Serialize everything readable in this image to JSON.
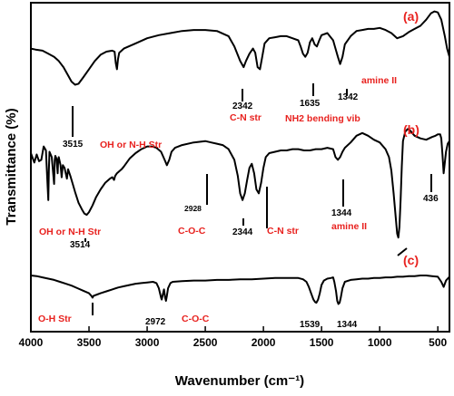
{
  "chart_data": {
    "type": "line",
    "xlabel": "Wavenumber (cm⁻¹)",
    "ylabel": "Transmittance (%)",
    "xlim": [
      4000,
      400
    ],
    "x_reversed": true,
    "y_ticks_shown": false,
    "x_ticks": [
      4000,
      3500,
      3000,
      2500,
      2000,
      1500,
      1000,
      500
    ],
    "panels": [
      {
        "label": "(a)",
        "points": [
          [
            4000,
            40
          ],
          [
            3960,
            41
          ],
          [
            3900,
            42
          ],
          [
            3850,
            45
          ],
          [
            3800,
            48
          ],
          [
            3760,
            52
          ],
          [
            3720,
            58
          ],
          [
            3680,
            66
          ],
          [
            3650,
            72
          ],
          [
            3620,
            75
          ],
          [
            3590,
            74
          ],
          [
            3550,
            68
          ],
          [
            3500,
            60
          ],
          [
            3450,
            52
          ],
          [
            3400,
            46
          ],
          [
            3350,
            43
          ],
          [
            3300,
            42
          ],
          [
            3280,
            43
          ],
          [
            3270,
            54
          ],
          [
            3260,
            60
          ],
          [
            3250,
            50
          ],
          [
            3240,
            44
          ],
          [
            3200,
            40
          ],
          [
            3100,
            35
          ],
          [
            3000,
            30
          ],
          [
            2900,
            27
          ],
          [
            2800,
            25
          ],
          [
            2700,
            23
          ],
          [
            2600,
            22
          ],
          [
            2500,
            22
          ],
          [
            2400,
            23
          ],
          [
            2300,
            28
          ],
          [
            2250,
            38
          ],
          [
            2200,
            52
          ],
          [
            2170,
            58
          ],
          [
            2150,
            52
          ],
          [
            2120,
            45
          ],
          [
            2090,
            40
          ],
          [
            2070,
            44
          ],
          [
            2050,
            58
          ],
          [
            2030,
            60
          ],
          [
            2010,
            48
          ],
          [
            1990,
            35
          ],
          [
            1950,
            30
          ],
          [
            1900,
            29
          ],
          [
            1850,
            28
          ],
          [
            1800,
            28
          ],
          [
            1750,
            30
          ],
          [
            1700,
            32
          ],
          [
            1680,
            38
          ],
          [
            1660,
            45
          ],
          [
            1640,
            48
          ],
          [
            1620,
            44
          ],
          [
            1600,
            34
          ],
          [
            1580,
            30
          ],
          [
            1560,
            36
          ],
          [
            1540,
            38
          ],
          [
            1520,
            32
          ],
          [
            1500,
            27
          ],
          [
            1450,
            25
          ],
          [
            1400,
            32
          ],
          [
            1380,
            40
          ],
          [
            1360,
            48
          ],
          [
            1340,
            55
          ],
          [
            1320,
            48
          ],
          [
            1300,
            36
          ],
          [
            1250,
            28
          ],
          [
            1200,
            23
          ],
          [
            1150,
            22
          ],
          [
            1100,
            21
          ],
          [
            1050,
            21
          ],
          [
            1000,
            20
          ],
          [
            950,
            22
          ],
          [
            900,
            25
          ],
          [
            850,
            30
          ],
          [
            800,
            28
          ],
          [
            750,
            24
          ],
          [
            700,
            21
          ],
          [
            650,
            18
          ],
          [
            600,
            12
          ],
          [
            560,
            6
          ],
          [
            530,
            4
          ],
          [
            500,
            5
          ],
          [
            470,
            12
          ],
          [
            440,
            28
          ],
          [
            420,
            40
          ],
          [
            400,
            48
          ]
        ]
      },
      {
        "label": "(b)",
        "points": [
          [
            4000,
            25
          ],
          [
            3970,
            32
          ],
          [
            3950,
            26
          ],
          [
            3930,
            31
          ],
          [
            3910,
            30
          ],
          [
            3890,
            20
          ],
          [
            3870,
            23
          ],
          [
            3860,
            42
          ],
          [
            3850,
            60
          ],
          [
            3845,
            38
          ],
          [
            3840,
            24
          ],
          [
            3820,
            28
          ],
          [
            3800,
            48
          ],
          [
            3795,
            30
          ],
          [
            3790,
            27
          ],
          [
            3780,
            29
          ],
          [
            3770,
            40
          ],
          [
            3765,
            30
          ],
          [
            3760,
            28
          ],
          [
            3745,
            34
          ],
          [
            3735,
            43
          ],
          [
            3725,
            34
          ],
          [
            3710,
            36
          ],
          [
            3690,
            44
          ],
          [
            3680,
            37
          ],
          [
            3660,
            42
          ],
          [
            3640,
            48
          ],
          [
            3620,
            54
          ],
          [
            3590,
            62
          ],
          [
            3560,
            67
          ],
          [
            3540,
            70
          ],
          [
            3520,
            71
          ],
          [
            3500,
            69
          ],
          [
            3470,
            64
          ],
          [
            3440,
            58
          ],
          [
            3400,
            52
          ],
          [
            3360,
            47
          ],
          [
            3320,
            44
          ],
          [
            3300,
            43
          ],
          [
            3285,
            45
          ],
          [
            3275,
            42
          ],
          [
            3260,
            40
          ],
          [
            3220,
            37
          ],
          [
            3200,
            35
          ],
          [
            3150,
            29
          ],
          [
            3100,
            25
          ],
          [
            3050,
            22
          ],
          [
            3000,
            20
          ],
          [
            2960,
            20
          ],
          [
            2920,
            21
          ],
          [
            2880,
            24
          ],
          [
            2850,
            30
          ],
          [
            2830,
            34
          ],
          [
            2810,
            30
          ],
          [
            2790,
            24
          ],
          [
            2760,
            21
          ],
          [
            2700,
            19
          ],
          [
            2600,
            17
          ],
          [
            2500,
            16
          ],
          [
            2450,
            17
          ],
          [
            2400,
            18
          ],
          [
            2350,
            19
          ],
          [
            2300,
            22
          ],
          [
            2250,
            30
          ],
          [
            2220,
            42
          ],
          [
            2200,
            55
          ],
          [
            2180,
            60
          ],
          [
            2160,
            55
          ],
          [
            2140,
            45
          ],
          [
            2120,
            36
          ],
          [
            2100,
            33
          ],
          [
            2080,
            40
          ],
          [
            2060,
            52
          ],
          [
            2040,
            55
          ],
          [
            2020,
            47
          ],
          [
            2000,
            36
          ],
          [
            1980,
            28
          ],
          [
            1950,
            25
          ],
          [
            1900,
            24
          ],
          [
            1850,
            23
          ],
          [
            1800,
            23
          ],
          [
            1750,
            22
          ],
          [
            1700,
            22
          ],
          [
            1650,
            23
          ],
          [
            1600,
            23
          ],
          [
            1550,
            22
          ],
          [
            1500,
            22
          ],
          [
            1450,
            21
          ],
          [
            1400,
            22
          ],
          [
            1380,
            28
          ],
          [
            1360,
            30
          ],
          [
            1340,
            28
          ],
          [
            1320,
            24
          ],
          [
            1300,
            21
          ],
          [
            1250,
            17
          ],
          [
            1200,
            12
          ],
          [
            1150,
            10
          ],
          [
            1100,
            12
          ],
          [
            1050,
            15
          ],
          [
            1000,
            17
          ],
          [
            950,
            22
          ],
          [
            920,
            28
          ],
          [
            900,
            38
          ],
          [
            880,
            55
          ],
          [
            860,
            75
          ],
          [
            850,
            85
          ],
          [
            840,
            88
          ],
          [
            830,
            80
          ],
          [
            820,
            60
          ],
          [
            810,
            35
          ],
          [
            800,
            16
          ],
          [
            780,
            9
          ],
          [
            760,
            7
          ],
          [
            740,
            8
          ],
          [
            720,
            10
          ],
          [
            700,
            12
          ],
          [
            650,
            14
          ],
          [
            600,
            15
          ],
          [
            550,
            13
          ],
          [
            520,
            12
          ],
          [
            500,
            11
          ],
          [
            480,
            11
          ],
          [
            470,
            14
          ],
          [
            460,
            26
          ],
          [
            450,
            40
          ],
          [
            440,
            32
          ],
          [
            430,
            24
          ],
          [
            415,
            18
          ],
          [
            400,
            16
          ]
        ]
      },
      {
        "label": "(c)",
        "points": [
          [
            4000,
            20
          ],
          [
            3950,
            21
          ],
          [
            3900,
            23
          ],
          [
            3850,
            25
          ],
          [
            3800,
            27
          ],
          [
            3750,
            30
          ],
          [
            3700,
            33
          ],
          [
            3650,
            36
          ],
          [
            3600,
            40
          ],
          [
            3550,
            44
          ],
          [
            3500,
            48
          ],
          [
            3480,
            52
          ],
          [
            3470,
            55
          ],
          [
            3460,
            52
          ],
          [
            3430,
            50
          ],
          [
            3400,
            48
          ],
          [
            3350,
            45
          ],
          [
            3300,
            42
          ],
          [
            3250,
            39
          ],
          [
            3200,
            37
          ],
          [
            3150,
            35
          ],
          [
            3100,
            33
          ],
          [
            3050,
            32
          ],
          [
            3000,
            31
          ],
          [
            2950,
            30
          ],
          [
            2920,
            32
          ],
          [
            2900,
            40
          ],
          [
            2880,
            55
          ],
          [
            2875,
            58
          ],
          [
            2865,
            50
          ],
          [
            2855,
            42
          ],
          [
            2845,
            55
          ],
          [
            2838,
            60
          ],
          [
            2830,
            52
          ],
          [
            2820,
            40
          ],
          [
            2800,
            32
          ],
          [
            2780,
            30
          ],
          [
            2700,
            29
          ],
          [
            2600,
            28
          ],
          [
            2500,
            28
          ],
          [
            2400,
            27
          ],
          [
            2300,
            27
          ],
          [
            2200,
            26
          ],
          [
            2100,
            26
          ],
          [
            2000,
            25
          ],
          [
            1900,
            24
          ],
          [
            1800,
            24
          ],
          [
            1700,
            24
          ],
          [
            1660,
            26
          ],
          [
            1630,
            30
          ],
          [
            1610,
            38
          ],
          [
            1590,
            48
          ],
          [
            1570,
            58
          ],
          [
            1555,
            62
          ],
          [
            1545,
            63
          ],
          [
            1530,
            58
          ],
          [
            1515,
            48
          ],
          [
            1500,
            35
          ],
          [
            1480,
            28
          ],
          [
            1450,
            25
          ],
          [
            1420,
            24
          ],
          [
            1400,
            23
          ],
          [
            1390,
            30
          ],
          [
            1375,
            45
          ],
          [
            1365,
            60
          ],
          [
            1355,
            65
          ],
          [
            1345,
            63
          ],
          [
            1335,
            55
          ],
          [
            1320,
            40
          ],
          [
            1300,
            30
          ],
          [
            1250,
            27
          ],
          [
            1200,
            26
          ],
          [
            1150,
            25
          ],
          [
            1100,
            25
          ],
          [
            1050,
            24
          ],
          [
            1000,
            24
          ],
          [
            950,
            23
          ],
          [
            900,
            23
          ],
          [
            850,
            22
          ],
          [
            800,
            22
          ],
          [
            750,
            21
          ],
          [
            700,
            21
          ],
          [
            650,
            20
          ],
          [
            600,
            20
          ],
          [
            550,
            21
          ],
          [
            500,
            22
          ],
          [
            470,
            30
          ],
          [
            450,
            38
          ],
          [
            430,
            28
          ],
          [
            400,
            22
          ]
        ]
      }
    ],
    "annotations": {
      "a": {
        "black": [
          "3515",
          "2342",
          "1635",
          "1342"
        ],
        "red": [
          "C-N str",
          "amine II",
          "NH2 bending vib",
          "OH or N-H Str"
        ]
      },
      "b": {
        "black": [
          "2928",
          "2344",
          "1344",
          "436",
          "3514"
        ],
        "red": [
          "OH or N-H Str",
          "C-O-C",
          "C-N str",
          "amine II"
        ]
      },
      "c": {
        "black": [
          "2972",
          "1539",
          "1344"
        ],
        "red": [
          "O-H Str",
          "C-O-C"
        ]
      }
    },
    "line_color": "#000000",
    "annotation_color": "#e8221f"
  }
}
